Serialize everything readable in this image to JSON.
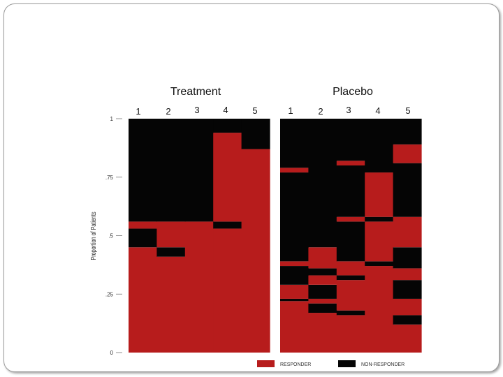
{
  "panels": [
    {
      "title": "Treatment",
      "columns": [
        "1",
        "2",
        "3",
        "4",
        "5"
      ]
    },
    {
      "title": "Placebo",
      "columns": [
        "1",
        "2",
        "3",
        "4",
        "5"
      ]
    }
  ],
  "colors": {
    "responder": "#b71c1c",
    "non_responder": "#050505"
  },
  "chart_data": {
    "type": "bar",
    "ylabel": "Proportion of Patients",
    "ylim": [
      0,
      1
    ],
    "yticks": [
      "0",
      ".25",
      ".5",
      ".75",
      "1"
    ],
    "legend": {
      "placement": "bottom-right",
      "items": [
        "RESPONDER",
        "NON-RESPONDER"
      ]
    },
    "panels": [
      {
        "name": "Treatment",
        "columns": [
          [
            [
              "R",
              0,
              0.45
            ],
            [
              "N",
              0.45,
              0.53
            ],
            [
              "R",
              0.53,
              0.56
            ],
            [
              "N",
              0.56,
              1
            ]
          ],
          [
            [
              "R",
              0,
              0.41
            ],
            [
              "N",
              0.41,
              0.45
            ],
            [
              "R",
              0.45,
              0.56
            ],
            [
              "N",
              0.56,
              1
            ]
          ],
          [
            [
              "R",
              0,
              0.56
            ],
            [
              "N",
              0.56,
              1
            ]
          ],
          [
            [
              "R",
              0,
              0.53
            ],
            [
              "N",
              0.53,
              0.56
            ],
            [
              "R",
              0.56,
              0.94
            ],
            [
              "N",
              0.94,
              1
            ]
          ],
          [
            [
              "R",
              0,
              0.87
            ],
            [
              "N",
              0.87,
              1
            ]
          ]
        ]
      },
      {
        "name": "Placebo",
        "columns": [
          [
            [
              "R",
              0,
              0.22
            ],
            [
              "N",
              0.22,
              0.23
            ],
            [
              "R",
              0.23,
              0.29
            ],
            [
              "N",
              0.29,
              0.37
            ],
            [
              "R",
              0.37,
              0.39
            ],
            [
              "N",
              0.39,
              0.77
            ],
            [
              "R",
              0.77,
              0.79
            ],
            [
              "N",
              0.79,
              1
            ]
          ],
          [
            [
              "R",
              0,
              0.17
            ],
            [
              "N",
              0.17,
              0.21
            ],
            [
              "R",
              0.21,
              0.23
            ],
            [
              "N",
              0.23,
              0.29
            ],
            [
              "R",
              0.29,
              0.33
            ],
            [
              "N",
              0.33,
              0.36
            ],
            [
              "R",
              0.36,
              0.45
            ],
            [
              "N",
              0.45,
              1
            ]
          ],
          [
            [
              "R",
              0,
              0.16
            ],
            [
              "N",
              0.16,
              0.18
            ],
            [
              "R",
              0.18,
              0.31
            ],
            [
              "N",
              0.31,
              0.33
            ],
            [
              "R",
              0.33,
              0.39
            ],
            [
              "N",
              0.39,
              0.56
            ],
            [
              "R",
              0.56,
              0.58
            ],
            [
              "N",
              0.58,
              0.8
            ],
            [
              "R",
              0.8,
              0.82
            ],
            [
              "N",
              0.82,
              1
            ]
          ],
          [
            [
              "R",
              0,
              0.37
            ],
            [
              "N",
              0.37,
              0.39
            ],
            [
              "R",
              0.39,
              0.56
            ],
            [
              "N",
              0.56,
              0.58
            ],
            [
              "R",
              0.58,
              0.77
            ],
            [
              "N",
              0.77,
              1
            ]
          ],
          [
            [
              "R",
              0,
              0.12
            ],
            [
              "N",
              0.12,
              0.16
            ],
            [
              "R",
              0.16,
              0.23
            ],
            [
              "N",
              0.23,
              0.31
            ],
            [
              "R",
              0.31,
              0.36
            ],
            [
              "N",
              0.36,
              0.45
            ],
            [
              "R",
              0.45,
              0.58
            ],
            [
              "N",
              0.58,
              0.81
            ],
            [
              "R",
              0.81,
              0.89
            ],
            [
              "N",
              0.89,
              1
            ]
          ]
        ]
      }
    ]
  }
}
